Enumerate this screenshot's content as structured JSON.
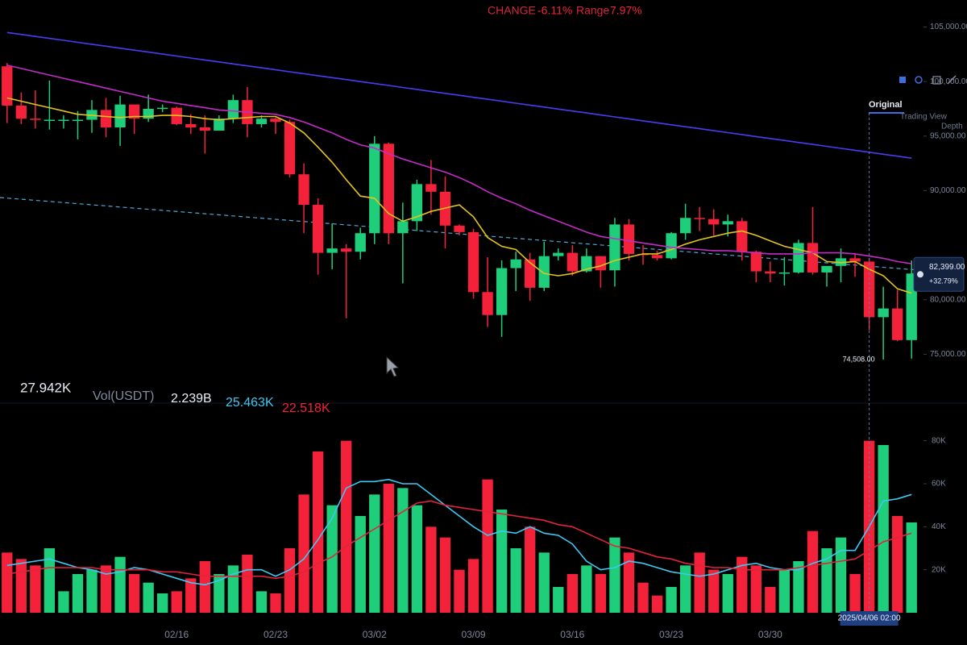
{
  "chart_data": {
    "type": "candlestick",
    "change_label": "CHANGE",
    "change": "-6.11%",
    "range_label": "Range",
    "range": "7.97%",
    "tabs": [
      "Original",
      "Trading View",
      "Depth"
    ],
    "volume_legend": [
      "27.942K",
      "Vol(USDT)",
      "2.239B",
      "25.463K",
      "22.518K"
    ],
    "categories": [
      null,
      null,
      null,
      null,
      null,
      null,
      null,
      null,
      null,
      null,
      null,
      null,
      "02/16",
      null,
      null,
      null,
      null,
      null,
      null,
      "02/23",
      null,
      null,
      null,
      null,
      null,
      null,
      "03/02",
      null,
      null,
      null,
      null,
      null,
      null,
      "03/09",
      null,
      null,
      null,
      null,
      null,
      null,
      "03/16",
      null,
      null,
      null,
      null,
      null,
      null,
      "03/23",
      null,
      null,
      null,
      null,
      null,
      null,
      "03/30",
      null,
      null,
      null,
      null,
      null,
      null,
      "2025/04/06 02:00",
      null,
      null,
      null
    ],
    "open": [
      101400,
      97800,
      96600,
      96500,
      96500,
      96500,
      96500,
      97400,
      95800,
      97900,
      96600,
      97500,
      97600,
      96100,
      95800,
      95500,
      96600,
      98300,
      96100,
      96600,
      96300,
      91500,
      88700,
      84300,
      84700,
      84400,
      86100,
      94300,
      86100,
      87200,
      90600,
      89900,
      86800,
      86200,
      80700,
      78600,
      82900,
      83700,
      81100,
      84000,
      84300,
      82600,
      84000,
      82700,
      86900,
      84200,
      84100,
      83800,
      86100,
      87500,
      87400,
      86900,
      87200,
      84400,
      82600,
      82400,
      82500,
      85200,
      82500,
      83100,
      83800,
      83500,
      78400,
      79200,
      76300
    ],
    "high": [
      101700,
      99000,
      99200,
      100100,
      96900,
      97300,
      98300,
      98500,
      98700,
      97900,
      98800,
      97900,
      97700,
      97000,
      96900,
      96900,
      98800,
      99500,
      96900,
      96700,
      96500,
      92500,
      89300,
      87000,
      85100,
      86600,
      95000,
      94400,
      88900,
      91000,
      92800,
      91300,
      86900,
      86500,
      83900,
      83600,
      84400,
      84300,
      85300,
      84700,
      85000,
      84700,
      84000,
      87500,
      87400,
      85000,
      84500,
      86200,
      88800,
      88500,
      88300,
      87800,
      87500,
      84500,
      83500,
      83900,
      85500,
      88500,
      83000,
      84700,
      84200,
      83800,
      81200,
      80900,
      83600
    ],
    "low": [
      96200,
      96100,
      95700,
      95600,
      95700,
      94700,
      95300,
      94900,
      94100,
      95200,
      96300,
      97200,
      96000,
      95200,
      93400,
      95500,
      96200,
      94900,
      95800,
      95200,
      91200,
      86100,
      82300,
      82800,
      78300,
      83700,
      85100,
      85100,
      81500,
      86300,
      87800,
      84700,
      85900,
      80100,
      77500,
      76600,
      80800,
      79900,
      80800,
      83600,
      82200,
      82500,
      81100,
      81200,
      83600,
      83200,
      83600,
      83700,
      85500,
      86300,
      85900,
      85800,
      83600,
      81600,
      81600,
      81300,
      82400,
      82300,
      81200,
      81600,
      82100,
      77200,
      74508,
      76200,
      74600
    ],
    "close": [
      97800,
      96600,
      96500,
      96500,
      96500,
      96500,
      97400,
      95800,
      97900,
      96600,
      97500,
      97600,
      96100,
      95800,
      95500,
      96600,
      98300,
      96100,
      96600,
      96300,
      91500,
      88700,
      84300,
      84700,
      84400,
      86100,
      94300,
      86100,
      87200,
      90600,
      89900,
      86800,
      86200,
      80700,
      78600,
      82900,
      83700,
      81100,
      84000,
      84300,
      82600,
      84000,
      82700,
      86900,
      84200,
      84100,
      83800,
      86100,
      87500,
      87400,
      86900,
      87200,
      84400,
      82600,
      82400,
      82500,
      85200,
      82500,
      83100,
      83800,
      83500,
      78400,
      79200,
      76300,
      82400
    ],
    "up_color": "#1fce7a",
    "down_color": "#f3223a",
    "lines": [
      {
        "color": "#e2c41a",
        "values": [
          98500,
          98200,
          97900,
          97600,
          97300,
          97000,
          96900,
          96800,
          96700,
          96800,
          96800,
          96900,
          96900,
          96800,
          96600,
          96500,
          96600,
          96700,
          96800,
          96800,
          96200,
          95300,
          94000,
          92600,
          91000,
          89500,
          89300,
          87900,
          87200,
          87600,
          88100,
          88400,
          88700,
          87600,
          85700,
          84900,
          84600,
          83400,
          82400,
          82200,
          82400,
          82800,
          83100,
          83600,
          83900,
          84200,
          84200,
          84600,
          85100,
          85500,
          85800,
          86100,
          86300,
          85900,
          85400,
          84900,
          84600,
          84300,
          83500,
          83400,
          83500,
          82800,
          82200,
          81000,
          80600
        ]
      },
      {
        "color": "#c42bc8",
        "values": [
          101500,
          101200,
          100900,
          100600,
          100300,
          100000,
          99700,
          99400,
          99100,
          98800,
          98500,
          98200,
          98000,
          97800,
          97600,
          97400,
          97300,
          97200,
          97100,
          97000,
          96700,
          96300,
          95800,
          95300,
          94700,
          94200,
          93900,
          93400,
          92900,
          92500,
          92100,
          91700,
          91200,
          90600,
          89900,
          89300,
          88800,
          88200,
          87700,
          87200,
          86700,
          86200,
          85800,
          85600,
          85400,
          85200,
          85000,
          84800,
          84700,
          84600,
          84500,
          84500,
          84400,
          84300,
          84200,
          84200,
          84200,
          84300,
          84300,
          84300,
          84200,
          84000,
          83800,
          83500,
          83300
        ]
      },
      {
        "color": "#4a3cf2",
        "values": [
          104500,
          104320,
          104140,
          103960,
          103780,
          103600,
          103420,
          103240,
          103060,
          102880,
          102700,
          102520,
          102340,
          102160,
          101980,
          101800,
          101620,
          101440,
          101260,
          101080,
          100900,
          100720,
          100540,
          100360,
          100180,
          100000,
          99820,
          99640,
          99460,
          99280,
          99100,
          98920,
          98740,
          98560,
          98380,
          98200,
          98020,
          97840,
          97660,
          97480,
          97300,
          97120,
          96940,
          96760,
          96580,
          96400,
          96220,
          96040,
          95860,
          95680,
          95500,
          95320,
          95140,
          94960,
          94780,
          94600,
          94420,
          94240,
          94060,
          93880,
          93700,
          93520,
          93340,
          93160,
          92980
        ]
      }
    ],
    "ylim": [
      72000,
      106000
    ],
    "yticks": [
      {
        "value": 75000,
        "label": "75,000.00"
      },
      {
        "value": 80000,
        "label": "80,000.00"
      },
      {
        "value": 90000,
        "label": "90,000.00"
      },
      {
        "value": 95000,
        "label": "95,000.00"
      },
      {
        "value": 100000,
        "label": "100,000.00"
      },
      {
        "value": 105000,
        "label": "105,000.00"
      }
    ],
    "last_price": {
      "value": 82399,
      "label": "82,399.00"
    },
    "last_change": "+32.79%",
    "low_label": {
      "value": 74508,
      "label": "74,508.00"
    },
    "volume": {
      "values": [
        28000,
        25000,
        22000,
        30000,
        10000,
        18000,
        20000,
        22000,
        26000,
        18000,
        14000,
        9000,
        10000,
        16000,
        24000,
        18000,
        22000,
        27000,
        10000,
        9000,
        30000,
        55000,
        75000,
        50000,
        80000,
        45000,
        55000,
        60000,
        58000,
        50000,
        40000,
        35000,
        20000,
        25000,
        62000,
        48000,
        30000,
        40000,
        28000,
        12000,
        18000,
        22000,
        18000,
        35000,
        28000,
        14000,
        8000,
        12000,
        22000,
        28000,
        20000,
        18000,
        26000,
        22000,
        12000,
        20000,
        24000,
        38000,
        30000,
        35000,
        18000,
        80000,
        78000,
        45000,
        42000
      ],
      "ylim": [
        0,
        90000
      ],
      "yticks": [
        {
          "value": 20000,
          "label": "20K"
        },
        {
          "value": 40000,
          "label": "40K"
        },
        {
          "value": 60000,
          "label": "60K"
        },
        {
          "value": 80000,
          "label": "80K"
        }
      ],
      "lines": [
        {
          "color": "#3ec8f2",
          "values": [
            22000,
            23000,
            24000,
            25000,
            23000,
            21000,
            20000,
            18000,
            19000,
            21000,
            20000,
            18000,
            16000,
            14000,
            13000,
            15000,
            18000,
            20000,
            20000,
            17000,
            20000,
            25000,
            34000,
            44000,
            58000,
            61000,
            61000,
            62000,
            60000,
            60000,
            55000,
            50000,
            45000,
            40000,
            36000,
            38000,
            37000,
            40000,
            37000,
            36000,
            32000,
            24000,
            20000,
            21000,
            24000,
            23000,
            21000,
            19000,
            18000,
            17000,
            18000,
            20000,
            22000,
            23000,
            21000,
            20000,
            20000,
            23000,
            25000,
            29000,
            29000,
            40000,
            52000,
            53000,
            55000
          ]
        },
        {
          "color": "#e0243a",
          "values": [
            18000,
            19000,
            20000,
            21000,
            21000,
            21000,
            21000,
            20000,
            20000,
            20000,
            20000,
            19000,
            19000,
            18000,
            17000,
            17000,
            17000,
            17000,
            17000,
            16000,
            17000,
            19000,
            23000,
            26000,
            31000,
            35000,
            39000,
            43000,
            47000,
            51000,
            52000,
            50000,
            49000,
            48000,
            47000,
            46000,
            45000,
            44000,
            43000,
            41000,
            40000,
            37000,
            34000,
            31000,
            30000,
            28000,
            26000,
            25000,
            23000,
            22000,
            21000,
            21000,
            20000,
            20000,
            20000,
            20000,
            21000,
            22000,
            23000,
            24000,
            25000,
            29000,
            33000,
            35000,
            37000
          ]
        }
      ]
    }
  }
}
